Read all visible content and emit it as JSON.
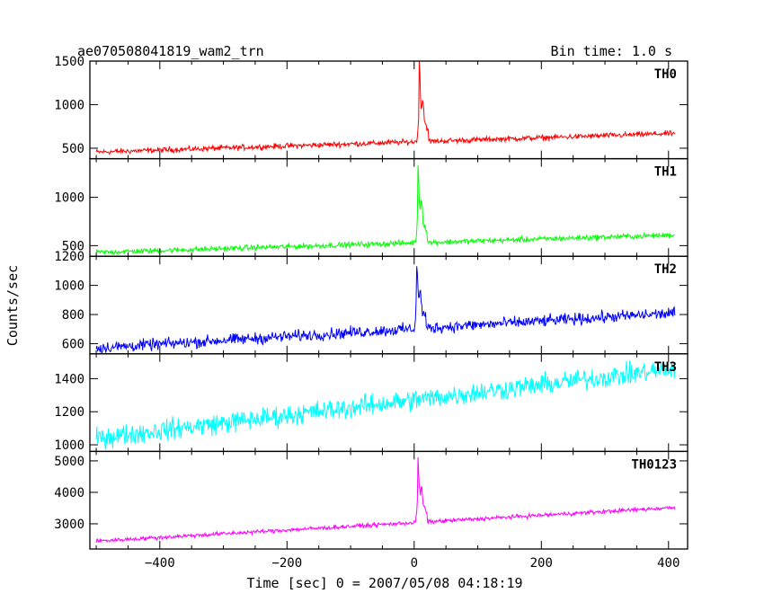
{
  "header": {
    "title": "ae070508041819_wam2_trn",
    "bin_time": "Bin time: 1.0 s"
  },
  "chart_data": {
    "type": "line",
    "xlabel": "Time [sec] 0 = 2007/05/08 04:18:19",
    "ylabel": "Counts/sec",
    "xlim": [
      -510,
      430
    ],
    "x_ticks": [
      -400,
      -200,
      0,
      200,
      400
    ],
    "x_tick_labels": [
      "−400",
      "−200",
      "0",
      "200",
      "400"
    ],
    "x_range": [
      -500,
      410
    ],
    "panels": [
      {
        "name": "TH0",
        "color": "#ff0000",
        "ylim": [
          380,
          1500
        ],
        "yticks": [
          500,
          1000,
          1500
        ],
        "ytick_labels": [
          "500",
          "1000",
          "1500"
        ],
        "baseline_start": 455,
        "baseline_end": 670,
        "noise": 22,
        "pre_burst_level": 530,
        "post_burst_level": 590,
        "peak_time": 8,
        "peak_value": 1500
      },
      {
        "name": "TH1",
        "color": "#00ff00",
        "ylim": [
          390,
          1400
        ],
        "yticks": [
          500,
          1000
        ],
        "ytick_labels": [
          "500",
          "1000"
        ],
        "baseline_start": 430,
        "baseline_end": 610,
        "noise": 20,
        "pre_burst_level": 480,
        "post_burst_level": 530,
        "peak_time": 6,
        "peak_value": 1360
      },
      {
        "name": "TH2",
        "color": "#0000ff",
        "ylim": [
          530,
          1200
        ],
        "yticks": [
          600,
          800,
          1000,
          1200
        ],
        "ytick_labels": [
          "600",
          "800",
          "1000",
          "1200"
        ],
        "baseline_start": 570,
        "baseline_end": 810,
        "noise": 28,
        "pre_burst_level": 650,
        "post_burst_level": 700,
        "peak_time": 4,
        "peak_value": 1190
      },
      {
        "name": "TH3",
        "color": "#00ffff",
        "ylim": [
          960,
          1550
        ],
        "yticks": [
          1000,
          1200,
          1400
        ],
        "ytick_labels": [
          "1000",
          "1200",
          "1400"
        ],
        "baseline_start": 1040,
        "baseline_end": 1460,
        "noise": 45,
        "pre_burst_level": 1230,
        "post_burst_level": 1250,
        "peak_time": 0,
        "peak_value": 1280
      },
      {
        "name": "TH0123",
        "color": "#ff00ff",
        "ylim": [
          2200,
          5300
        ],
        "yticks": [
          3000,
          4000,
          5000
        ],
        "ytick_labels": [
          "3000",
          "4000",
          "5000"
        ],
        "baseline_start": 2450,
        "baseline_end": 3520,
        "noise": 45,
        "pre_burst_level": 2900,
        "post_burst_level": 3080,
        "peak_time": 6,
        "peak_value": 5150
      }
    ]
  }
}
